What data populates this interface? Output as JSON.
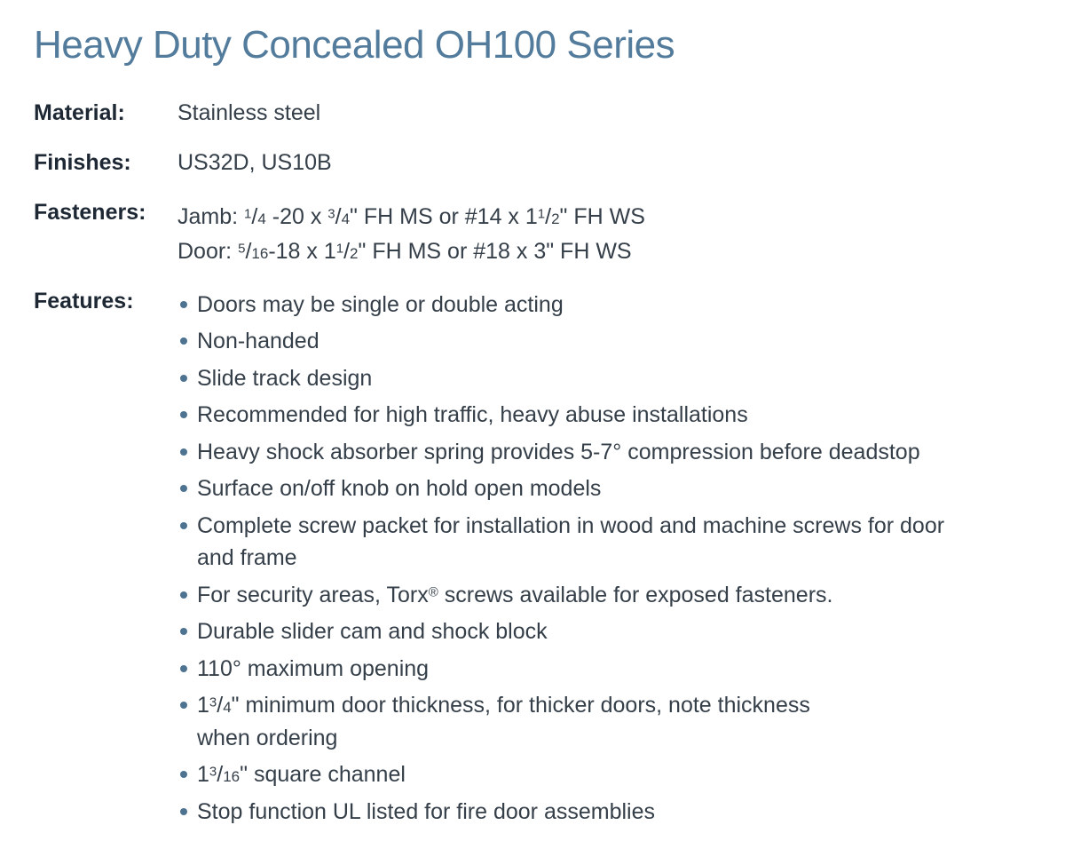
{
  "colors": {
    "title": "#527b9c",
    "label": "#1d2834",
    "body": "#353f49",
    "bullet": "#4e7390",
    "background": "#ffffff"
  },
  "title": "Heavy Duty Concealed OH100 Series",
  "specs": [
    {
      "label": "Material:",
      "value": "Stainless steel"
    },
    {
      "label": "Finishes:",
      "value": "US32D, US10B"
    }
  ],
  "fasteners": {
    "label": "Fasteners:",
    "lines": [
      "Jamb: <sup>1</sup>/<small>4</small> -20 x <sup>3</sup>/<small>4</small>\" FH MS or #14 x 1<sup>1</sup>/<small>2</small>\" FH WS",
      "Door: <sup>5</sup>/<small>16</small>-18 x 1<sup>1</sup>/<small>2</small>\" FH MS or #18 x 3\" FH WS"
    ]
  },
  "features": {
    "label": "Features:",
    "items": [
      "Doors may be single or double acting",
      "Non-handed",
      "Slide track design",
      "Recommended for high traffic, heavy abuse installations",
      "Heavy shock absorber spring provides 5-7° compression before deadstop",
      "Surface on/off knob on hold open models",
      "Complete screw packet for installation in wood and machine screws for door<br>and frame",
      "For security areas, Torx<sup>®</sup> screws available for exposed fasteners.",
      "Durable slider cam and shock block",
      "110° maximum opening",
      "1<sup>3</sup>/<small>4</small>\" minimum door thickness, for thicker doors, note thickness<br>when ordering",
      "1<sup>3</sup>/<small>16</small>\" square channel",
      "Stop function UL listed for fire door assemblies"
    ]
  }
}
